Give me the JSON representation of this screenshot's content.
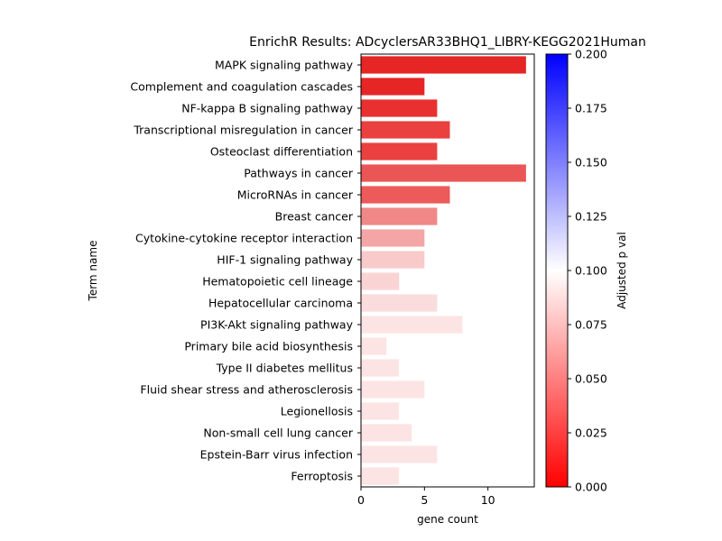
{
  "chart_data": {
    "type": "bar",
    "orientation": "horizontal",
    "title": "EnrichR Results: ADcyclersAR33BHQ1_LIBRY-KEGG2021Human",
    "xlabel": "gene count",
    "ylabel": "Term name",
    "xlim": [
      0,
      13.65
    ],
    "xticks": [
      0,
      5,
      10
    ],
    "grid": false,
    "categories": [
      "MAPK signaling pathway",
      "Complement and coagulation cascades",
      "NF-kappa B signaling pathway",
      "Transcriptional misregulation in cancer",
      "Osteoclast differentiation",
      "Pathways in cancer",
      "MicroRNAs in cancer",
      "Breast cancer",
      "Cytokine-cytokine receptor interaction",
      "HIF-1 signaling pathway",
      "Hematopoietic cell lineage",
      "Hepatocellular carcinoma",
      "PI3K-Akt signaling pathway",
      "Primary bile acid biosynthesis",
      "Type II diabetes mellitus",
      "Fluid shear stress and atherosclerosis",
      "Legionellosis",
      "Non-small cell lung cancer",
      "Epstein-Barr virus infection",
      "Ferroptosis"
    ],
    "values": [
      13,
      5,
      6,
      7,
      6,
      13,
      7,
      6,
      5,
      5,
      3,
      6,
      8,
      2,
      3,
      5,
      3,
      4,
      6,
      3
    ],
    "bar_colors": [
      "#e62525",
      "#e62525",
      "#e83030",
      "#ea4040",
      "#ea4040",
      "#ea5555",
      "#ec5a5a",
      "#f08888",
      "#f4a6a6",
      "#f8caca",
      "#fad4d4",
      "#fbdcdc",
      "#fce4e4",
      "#fce4e4",
      "#fce4e4",
      "#fce4e4",
      "#fce4e4",
      "#fce4e4",
      "#fce4e4",
      "#fce4e4"
    ],
    "colorbar": {
      "label": "Adjusted p val",
      "range": [
        0.0,
        0.2
      ],
      "ticks": [
        "0.000",
        "0.025",
        "0.050",
        "0.075",
        "0.100",
        "0.125",
        "0.150",
        "0.175",
        "0.200"
      ],
      "color_low": "#ff0000",
      "color_mid": "#ffffff",
      "color_high": "#0000ff"
    }
  }
}
